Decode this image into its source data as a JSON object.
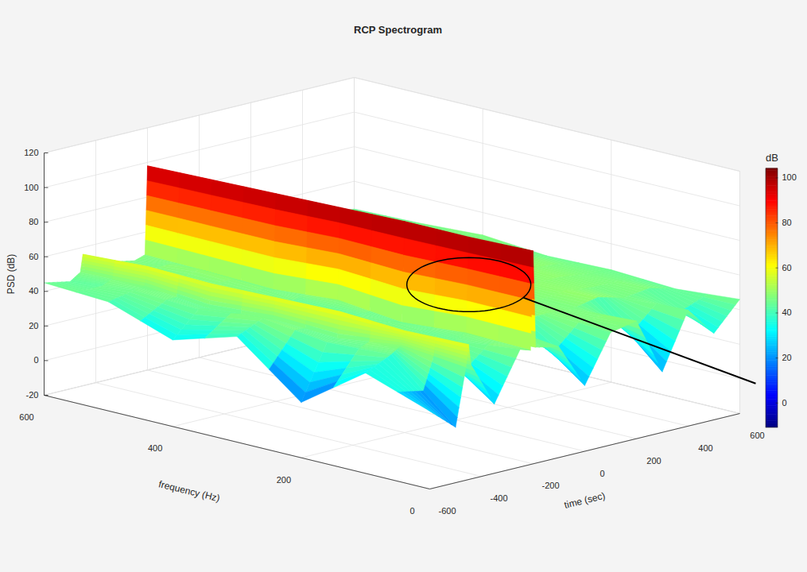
{
  "chart_data": {
    "type": "surface",
    "title": "RCP Spectrogram",
    "x_label": "time (sec)",
    "y_label": "frequency (Hz)",
    "z_label": "PSD (dB)",
    "x": [
      -600,
      -500,
      -460,
      -450,
      -440,
      -350,
      -250,
      -210,
      -200,
      -190,
      -100,
      0,
      100,
      200,
      300,
      400,
      500,
      600
    ],
    "y": [
      0,
      100,
      200,
      300,
      400,
      500,
      600
    ],
    "z": [
      [
        25,
        38,
        12,
        41,
        30,
        43,
        45
      ],
      [
        12,
        45,
        43,
        48,
        44,
        46,
        42
      ],
      [
        45,
        49,
        44,
        46,
        43,
        47,
        46
      ],
      [
        58,
        57,
        59,
        58,
        57,
        58,
        56
      ],
      [
        46,
        44,
        47,
        45,
        48,
        44,
        46
      ],
      [
        20,
        47,
        45,
        49,
        46,
        45,
        48
      ],
      [
        48,
        44,
        46,
        43,
        47,
        49,
        45
      ],
      [
        46,
        47,
        44,
        48,
        45,
        46,
        47
      ],
      [
        103,
        102,
        102,
        101,
        100,
        99,
        98
      ],
      [
        47,
        45,
        48,
        46,
        47,
        45,
        46
      ],
      [
        44,
        48,
        46,
        47,
        49,
        46,
        45
      ],
      [
        18,
        46,
        48,
        45,
        47,
        50,
        47
      ],
      [
        45,
        47,
        49,
        48,
        46,
        48,
        50
      ],
      [
        48,
        46,
        47,
        50,
        48,
        47,
        49
      ],
      [
        15,
        49,
        48,
        47,
        50,
        49,
        48
      ],
      [
        47,
        45,
        48,
        49,
        47,
        48,
        46
      ],
      [
        30,
        47,
        46,
        48,
        46,
        47,
        45
      ],
      [
        46,
        43,
        45,
        44,
        47,
        45,
        44
      ]
    ],
    "xlim": [
      -600,
      600
    ],
    "xticks": [
      -600,
      -400,
      -200,
      0,
      200,
      400,
      600
    ],
    "ylim": [
      0,
      600
    ],
    "yticks": [
      0,
      200,
      400,
      600
    ],
    "zlim": [
      -20,
      120
    ],
    "zticks": [
      -20,
      0,
      20,
      40,
      60,
      80,
      100,
      120
    ],
    "colorbar": {
      "label": "dB",
      "range": [
        -11,
        104
      ],
      "ticks": [
        0,
        20,
        40,
        60,
        80,
        100
      ]
    },
    "grid": true
  }
}
